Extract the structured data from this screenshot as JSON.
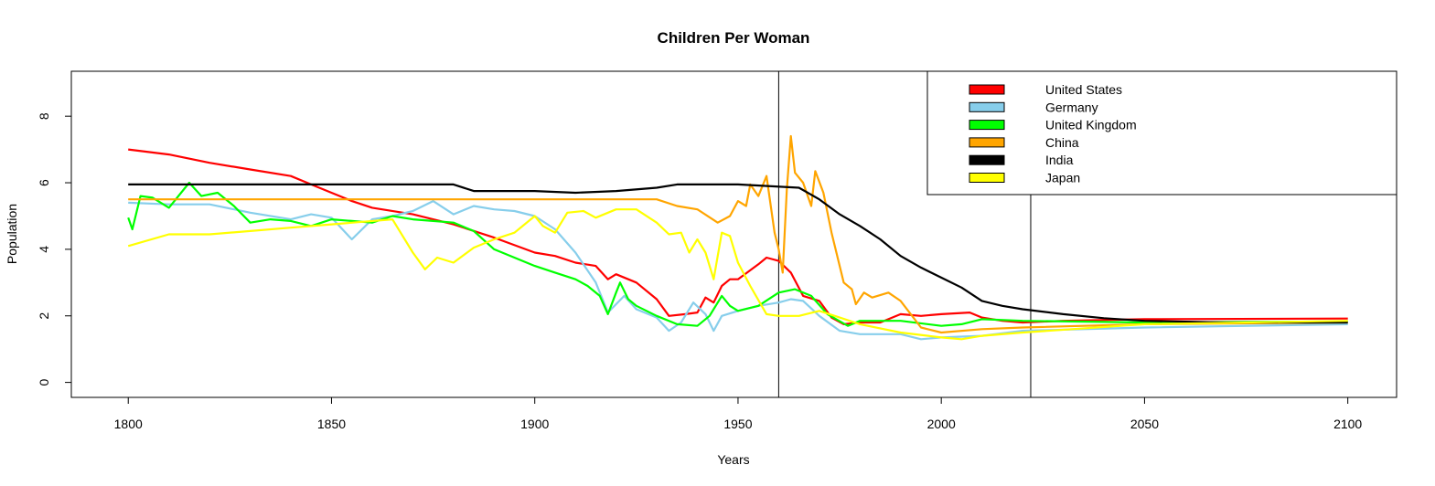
{
  "chart_data": {
    "type": "line",
    "title": "Children Per Woman",
    "xlabel": "Years",
    "ylabel": "Population",
    "xlim": [
      1786,
      2112
    ],
    "ylim": [
      -0.45,
      9.35
    ],
    "x_ticks": [
      1800,
      1850,
      1900,
      1950,
      2000,
      2050,
      2100
    ],
    "y_ticks": [
      0,
      2,
      4,
      6,
      8
    ],
    "grid": false,
    "legend_position": "top-right",
    "vertical_lines": [
      1960,
      2022
    ],
    "series": [
      {
        "name": "United States",
        "color": "#ff0000",
        "points": [
          [
            1800,
            7.0
          ],
          [
            1810,
            6.85
          ],
          [
            1820,
            6.6
          ],
          [
            1830,
            6.4
          ],
          [
            1840,
            6.2
          ],
          [
            1845,
            5.95
          ],
          [
            1850,
            5.7
          ],
          [
            1855,
            5.45
          ],
          [
            1860,
            5.25
          ],
          [
            1870,
            5.05
          ],
          [
            1880,
            4.75
          ],
          [
            1890,
            4.35
          ],
          [
            1900,
            3.9
          ],
          [
            1905,
            3.8
          ],
          [
            1910,
            3.6
          ],
          [
            1915,
            3.5
          ],
          [
            1918,
            3.1
          ],
          [
            1920,
            3.25
          ],
          [
            1925,
            3.0
          ],
          [
            1930,
            2.5
          ],
          [
            1933,
            2.0
          ],
          [
            1937,
            2.05
          ],
          [
            1940,
            2.1
          ],
          [
            1942,
            2.55
          ],
          [
            1944,
            2.4
          ],
          [
            1946,
            2.9
          ],
          [
            1948,
            3.1
          ],
          [
            1950,
            3.1
          ],
          [
            1955,
            3.55
          ],
          [
            1957,
            3.75
          ],
          [
            1960,
            3.65
          ],
          [
            1963,
            3.3
          ],
          [
            1966,
            2.6
          ],
          [
            1970,
            2.45
          ],
          [
            1973,
            1.95
          ],
          [
            1976,
            1.75
          ],
          [
            1980,
            1.8
          ],
          [
            1985,
            1.8
          ],
          [
            1990,
            2.05
          ],
          [
            1995,
            2.0
          ],
          [
            2000,
            2.05
          ],
          [
            2007,
            2.1
          ],
          [
            2010,
            1.95
          ],
          [
            2015,
            1.85
          ],
          [
            2020,
            1.8
          ],
          [
            2030,
            1.85
          ],
          [
            2050,
            1.9
          ],
          [
            2100,
            1.92
          ]
        ]
      },
      {
        "name": "Germany",
        "color": "#87ceeb",
        "points": [
          [
            1800,
            5.4
          ],
          [
            1810,
            5.35
          ],
          [
            1820,
            5.35
          ],
          [
            1830,
            5.1
          ],
          [
            1840,
            4.9
          ],
          [
            1845,
            5.05
          ],
          [
            1850,
            4.95
          ],
          [
            1855,
            4.3
          ],
          [
            1860,
            4.9
          ],
          [
            1865,
            5.0
          ],
          [
            1870,
            5.15
          ],
          [
            1875,
            5.45
          ],
          [
            1880,
            5.05
          ],
          [
            1885,
            5.3
          ],
          [
            1890,
            5.2
          ],
          [
            1895,
            5.15
          ],
          [
            1900,
            5.0
          ],
          [
            1905,
            4.6
          ],
          [
            1910,
            3.9
          ],
          [
            1915,
            3.0
          ],
          [
            1918,
            2.1
          ],
          [
            1922,
            2.6
          ],
          [
            1925,
            2.2
          ],
          [
            1930,
            1.95
          ],
          [
            1933,
            1.55
          ],
          [
            1936,
            1.8
          ],
          [
            1939,
            2.4
          ],
          [
            1942,
            2.05
          ],
          [
            1944,
            1.55
          ],
          [
            1946,
            2.0
          ],
          [
            1950,
            2.15
          ],
          [
            1955,
            2.3
          ],
          [
            1960,
            2.4
          ],
          [
            1963,
            2.5
          ],
          [
            1966,
            2.45
          ],
          [
            1970,
            2.0
          ],
          [
            1975,
            1.55
          ],
          [
            1980,
            1.45
          ],
          [
            1990,
            1.45
          ],
          [
            1995,
            1.3
          ],
          [
            2000,
            1.35
          ],
          [
            2010,
            1.4
          ],
          [
            2020,
            1.55
          ],
          [
            2050,
            1.65
          ],
          [
            2100,
            1.75
          ]
        ]
      },
      {
        "name": "United Kingdom",
        "color": "#00ff00",
        "points": [
          [
            1800,
            4.95
          ],
          [
            1801,
            4.6
          ],
          [
            1803,
            5.6
          ],
          [
            1806,
            5.55
          ],
          [
            1810,
            5.25
          ],
          [
            1815,
            6.0
          ],
          [
            1818,
            5.6
          ],
          [
            1822,
            5.7
          ],
          [
            1826,
            5.3
          ],
          [
            1830,
            4.8
          ],
          [
            1835,
            4.9
          ],
          [
            1840,
            4.85
          ],
          [
            1845,
            4.7
          ],
          [
            1850,
            4.9
          ],
          [
            1855,
            4.85
          ],
          [
            1860,
            4.8
          ],
          [
            1865,
            5.0
          ],
          [
            1870,
            4.9
          ],
          [
            1875,
            4.85
          ],
          [
            1880,
            4.8
          ],
          [
            1885,
            4.55
          ],
          [
            1890,
            4.0
          ],
          [
            1900,
            3.5
          ],
          [
            1905,
            3.3
          ],
          [
            1910,
            3.1
          ],
          [
            1913,
            2.9
          ],
          [
            1916,
            2.6
          ],
          [
            1918,
            2.05
          ],
          [
            1920,
            2.7
          ],
          [
            1921,
            3.0
          ],
          [
            1923,
            2.5
          ],
          [
            1925,
            2.3
          ],
          [
            1930,
            2.0
          ],
          [
            1935,
            1.75
          ],
          [
            1940,
            1.7
          ],
          [
            1943,
            2.0
          ],
          [
            1946,
            2.6
          ],
          [
            1948,
            2.3
          ],
          [
            1950,
            2.15
          ],
          [
            1955,
            2.3
          ],
          [
            1960,
            2.7
          ],
          [
            1964,
            2.8
          ],
          [
            1968,
            2.6
          ],
          [
            1972,
            2.05
          ],
          [
            1977,
            1.7
          ],
          [
            1980,
            1.85
          ],
          [
            1990,
            1.85
          ],
          [
            2000,
            1.7
          ],
          [
            2005,
            1.75
          ],
          [
            2010,
            1.9
          ],
          [
            2020,
            1.85
          ],
          [
            2050,
            1.8
          ],
          [
            2100,
            1.83
          ]
        ]
      },
      {
        "name": "China",
        "color": "#ffa500",
        "points": [
          [
            1800,
            5.5
          ],
          [
            1850,
            5.5
          ],
          [
            1900,
            5.5
          ],
          [
            1930,
            5.5
          ],
          [
            1935,
            5.3
          ],
          [
            1940,
            5.2
          ],
          [
            1945,
            4.8
          ],
          [
            1948,
            5.0
          ],
          [
            1950,
            5.45
          ],
          [
            1952,
            5.3
          ],
          [
            1953,
            5.95
          ],
          [
            1955,
            5.6
          ],
          [
            1957,
            6.2
          ],
          [
            1959,
            4.5
          ],
          [
            1960,
            4.0
          ],
          [
            1961,
            3.3
          ],
          [
            1962,
            5.8
          ],
          [
            1963,
            7.4
          ],
          [
            1964,
            6.3
          ],
          [
            1966,
            6.0
          ],
          [
            1968,
            5.3
          ],
          [
            1969,
            6.35
          ],
          [
            1971,
            5.7
          ],
          [
            1973,
            4.5
          ],
          [
            1976,
            3.0
          ],
          [
            1978,
            2.8
          ],
          [
            1979,
            2.35
          ],
          [
            1981,
            2.7
          ],
          [
            1983,
            2.55
          ],
          [
            1987,
            2.7
          ],
          [
            1990,
            2.45
          ],
          [
            1995,
            1.65
          ],
          [
            2000,
            1.5
          ],
          [
            2010,
            1.6
          ],
          [
            2020,
            1.65
          ],
          [
            2050,
            1.75
          ],
          [
            2100,
            1.8
          ]
        ]
      },
      {
        "name": "India",
        "color": "#000000",
        "points": [
          [
            1800,
            5.95
          ],
          [
            1850,
            5.95
          ],
          [
            1880,
            5.95
          ],
          [
            1885,
            5.75
          ],
          [
            1900,
            5.75
          ],
          [
            1910,
            5.7
          ],
          [
            1920,
            5.75
          ],
          [
            1930,
            5.85
          ],
          [
            1935,
            5.95
          ],
          [
            1950,
            5.95
          ],
          [
            1965,
            5.85
          ],
          [
            1970,
            5.5
          ],
          [
            1975,
            5.05
          ],
          [
            1980,
            4.7
          ],
          [
            1985,
            4.3
          ],
          [
            1990,
            3.8
          ],
          [
            1995,
            3.45
          ],
          [
            2000,
            3.15
          ],
          [
            2005,
            2.85
          ],
          [
            2010,
            2.45
          ],
          [
            2015,
            2.3
          ],
          [
            2020,
            2.2
          ],
          [
            2030,
            2.05
          ],
          [
            2040,
            1.93
          ],
          [
            2050,
            1.85
          ],
          [
            2070,
            1.8
          ],
          [
            2100,
            1.8
          ]
        ]
      },
      {
        "name": "Japan",
        "color": "#ffff00",
        "points": [
          [
            1800,
            4.1
          ],
          [
            1810,
            4.45
          ],
          [
            1820,
            4.45
          ],
          [
            1830,
            4.55
          ],
          [
            1840,
            4.65
          ],
          [
            1850,
            4.75
          ],
          [
            1865,
            4.9
          ],
          [
            1870,
            3.9
          ],
          [
            1873,
            3.4
          ],
          [
            1876,
            3.75
          ],
          [
            1880,
            3.6
          ],
          [
            1885,
            4.05
          ],
          [
            1890,
            4.3
          ],
          [
            1895,
            4.5
          ],
          [
            1900,
            5.0
          ],
          [
            1902,
            4.7
          ],
          [
            1905,
            4.5
          ],
          [
            1908,
            5.1
          ],
          [
            1912,
            5.15
          ],
          [
            1915,
            4.95
          ],
          [
            1920,
            5.2
          ],
          [
            1925,
            5.2
          ],
          [
            1930,
            4.8
          ],
          [
            1933,
            4.45
          ],
          [
            1936,
            4.5
          ],
          [
            1938,
            3.9
          ],
          [
            1940,
            4.3
          ],
          [
            1942,
            3.9
          ],
          [
            1944,
            3.1
          ],
          [
            1946,
            4.5
          ],
          [
            1948,
            4.4
          ],
          [
            1950,
            3.6
          ],
          [
            1953,
            2.9
          ],
          [
            1957,
            2.05
          ],
          [
            1960,
            2.0
          ],
          [
            1965,
            2.0
          ],
          [
            1970,
            2.15
          ],
          [
            1975,
            1.95
          ],
          [
            1980,
            1.75
          ],
          [
            1990,
            1.5
          ],
          [
            2000,
            1.35
          ],
          [
            2005,
            1.3
          ],
          [
            2010,
            1.4
          ],
          [
            2020,
            1.5
          ],
          [
            2050,
            1.75
          ],
          [
            2100,
            1.85
          ]
        ]
      }
    ]
  }
}
